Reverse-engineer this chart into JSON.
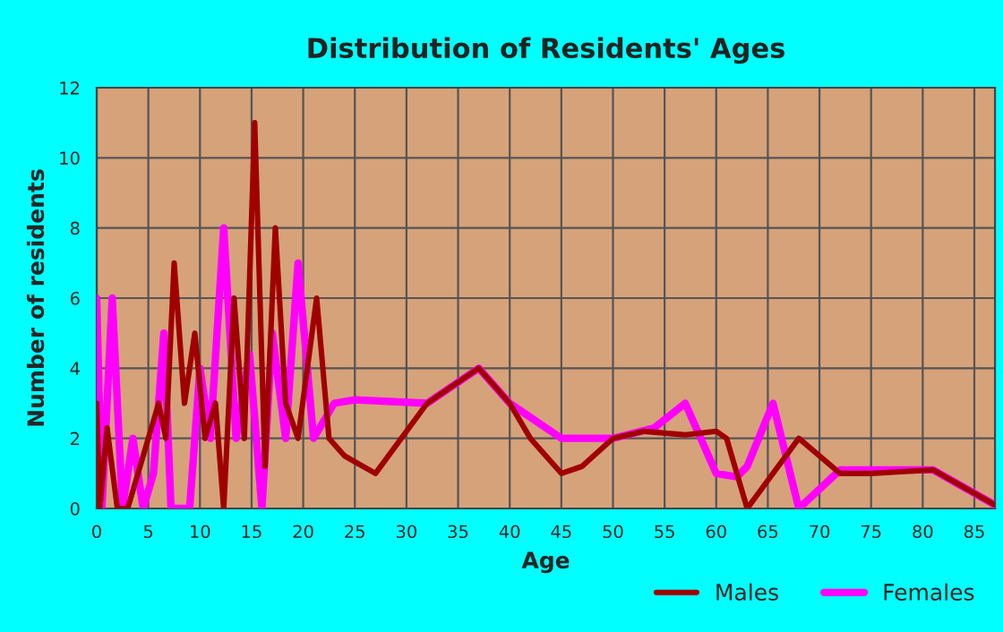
{
  "chart_data": {
    "type": "line",
    "title": "Distribution of Residents' Ages",
    "xlabel": "Age",
    "ylabel": "Number of residents",
    "xlim": [
      0,
      87
    ],
    "xticks": [
      0,
      5,
      10,
      15,
      20,
      25,
      30,
      35,
      40,
      45,
      50,
      55,
      60,
      65,
      70,
      75,
      80,
      85
    ],
    "ylim": [
      0,
      12
    ],
    "yticks": [
      0,
      2,
      4,
      6,
      8,
      10,
      12
    ],
    "grid": true,
    "legend": "bottom right",
    "line_style": "solid",
    "series": [
      {
        "name": "Males",
        "color": "#a00000",
        "x": [
          0,
          0.3,
          1,
          2,
          3,
          4,
          5,
          6,
          6.7,
          7.5,
          8.5,
          9.5,
          10.5,
          11.5,
          12.3,
          13.3,
          14.3,
          15.3,
          16.3,
          17.3,
          18.3,
          19.5,
          21.3,
          22.5,
          24,
          27,
          32,
          37,
          40,
          42,
          45,
          47,
          50,
          53,
          57,
          60,
          61,
          63,
          68,
          72,
          75,
          81,
          87
        ],
        "values": [
          3,
          0,
          2.3,
          0,
          0,
          1,
          2,
          3,
          2,
          7,
          3,
          5,
          2,
          3,
          0,
          6,
          2,
          11,
          1.2,
          8,
          3,
          2,
          6,
          2,
          1.5,
          1,
          3,
          4,
          3,
          2,
          1,
          1.2,
          2,
          2.2,
          2.1,
          2.2,
          2,
          0,
          2,
          1,
          1,
          1.1,
          0.1
        ]
      },
      {
        "name": "Females",
        "color": "#ff00ff",
        "x": [
          0,
          0.5,
          1.5,
          2.5,
          3.5,
          4.5,
          5.5,
          6.5,
          7.2,
          8,
          9,
          10,
          11,
          12.3,
          13.5,
          14.8,
          16,
          17,
          18.3,
          19.5,
          21,
          23,
          25,
          32,
          37,
          40,
          45,
          50,
          54,
          57,
          60,
          62,
          63,
          65.5,
          68,
          72,
          78,
          81,
          87
        ],
        "values": [
          6,
          0,
          6,
          0,
          2,
          0,
          1,
          5,
          0,
          0,
          0,
          4,
          2,
          8,
          2,
          4.4,
          0,
          5,
          2,
          7,
          2,
          3,
          3.1,
          3,
          4,
          3,
          2,
          2,
          2.3,
          3,
          1,
          0.9,
          1.2,
          3,
          0,
          1.1,
          1.1,
          1.1,
          0.1
        ]
      }
    ]
  }
}
